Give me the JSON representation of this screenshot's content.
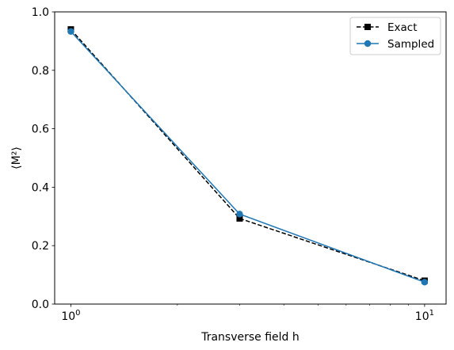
{
  "chart_data": {
    "type": "line",
    "x_scale": "log",
    "xlabel": "Transverse field h",
    "ylabel": "⟨M²⟩",
    "xlim": [
      0.9,
      11.5
    ],
    "ylim": [
      0.0,
      1.0
    ],
    "x": [
      1,
      3,
      10
    ],
    "x_ticks": [
      {
        "value": 1,
        "base": "10",
        "exp": "0"
      },
      {
        "value": 10,
        "base": "10",
        "exp": "1"
      }
    ],
    "y_ticks": [
      {
        "value": 0.0,
        "label": "0.0"
      },
      {
        "value": 0.2,
        "label": "0.2"
      },
      {
        "value": 0.4,
        "label": "0.4"
      },
      {
        "value": 0.6,
        "label": "0.6"
      },
      {
        "value": 0.8,
        "label": "0.8"
      },
      {
        "value": 1.0,
        "label": "1.0"
      }
    ],
    "series": [
      {
        "name": "Exact",
        "values": [
          0.94,
          0.293,
          0.08
        ],
        "color": "#000000",
        "line_style": "dashed",
        "marker": "square"
      },
      {
        "name": "Sampled",
        "values": [
          0.933,
          0.308,
          0.075
        ],
        "color": "#1f77b4",
        "line_style": "solid",
        "marker": "circle"
      }
    ],
    "legend_position": "top-right",
    "grid": false
  }
}
